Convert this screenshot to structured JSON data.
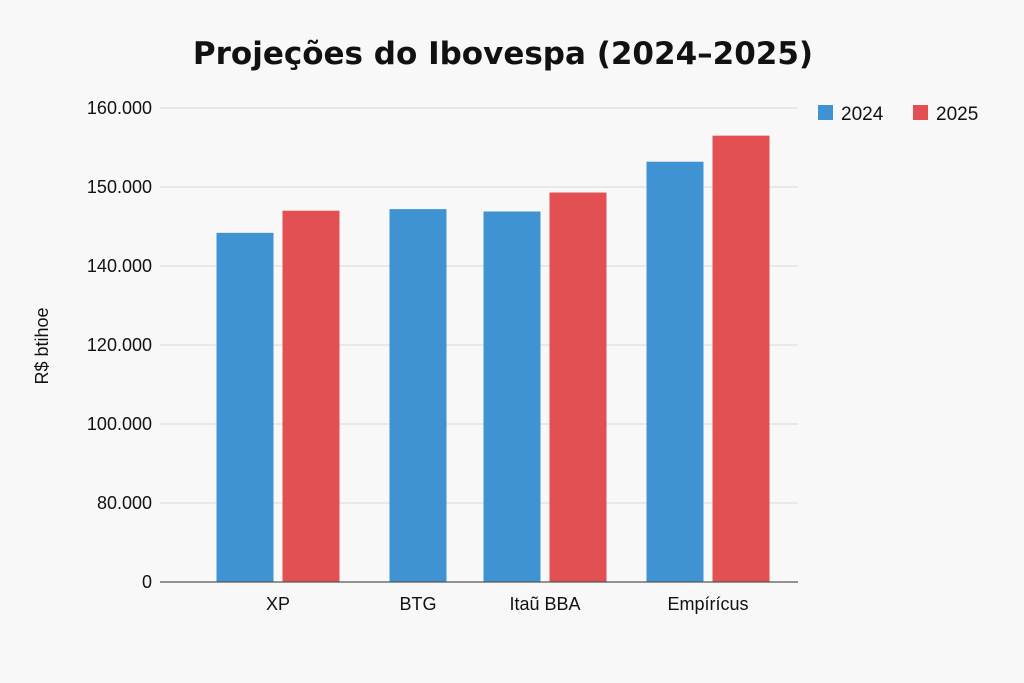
{
  "chart_data": {
    "type": "bar",
    "title": "Projeções do Ibovespa (2024–2025)",
    "xlabel": "",
    "ylabel": "R$ btihoe",
    "categories": [
      "XP",
      "BTG",
      "Itaũ BBA",
      "Empírícus"
    ],
    "y_tick_labels": [
      "0",
      "80.000",
      "100.000",
      "120.000",
      "140.000",
      "150.000",
      "160.000"
    ],
    "y_tick_values": [
      0,
      80000,
      100000,
      120000,
      140000,
      150000,
      160000
    ],
    "series": [
      {
        "name": "2024",
        "color": "#3f93d2",
        "values": [
          144200,
          147200,
          146900,
          153200
        ]
      },
      {
        "name": "2025",
        "color": "#e35053",
        "values": [
          147000,
          null,
          149300,
          156500
        ]
      }
    ],
    "grid": true,
    "legend_position": "top-right"
  }
}
